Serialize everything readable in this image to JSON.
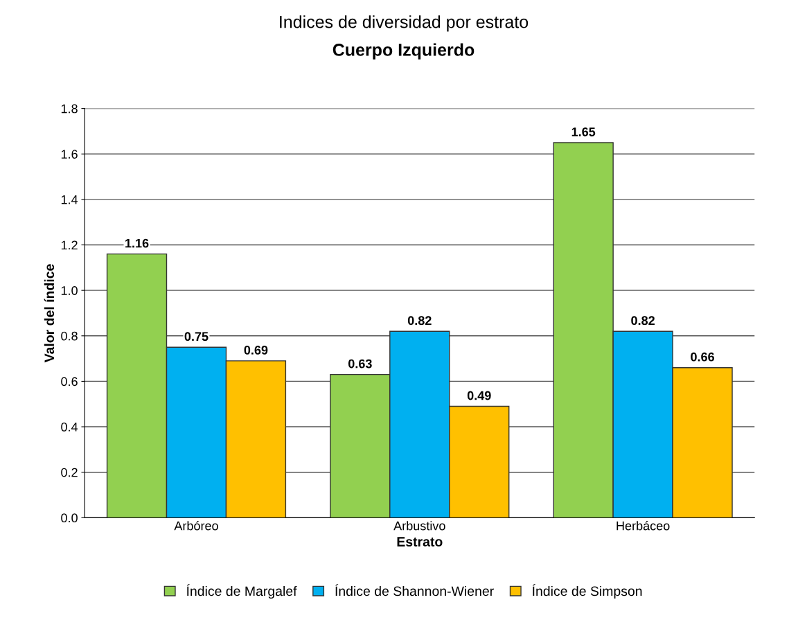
{
  "chart_data": {
    "type": "bar",
    "title": "Indices de diversidad por estrato",
    "subtitle": "Cuerpo Izquierdo",
    "xlabel": "Estrato",
    "ylabel": "Valor del índice",
    "categories": [
      "Arbóreo",
      "Arbustivo",
      "Herbáceo"
    ],
    "series": [
      {
        "name": "Índice de Margalef",
        "color": "#92d050",
        "values": [
          1.16,
          0.63,
          1.65
        ]
      },
      {
        "name": "Índice de Shannon-Wiener",
        "color": "#00b0f0",
        "values": [
          0.75,
          0.82,
          0.82
        ]
      },
      {
        "name": "Índice de Simpson",
        "color": "#ffc000",
        "values": [
          0.69,
          0.49,
          0.66
        ]
      }
    ],
    "ylim": [
      0,
      1.8
    ],
    "yticks": [
      {
        "value": 0,
        "label": "0.0"
      },
      {
        "value": 0.2,
        "label": "0.2"
      },
      {
        "value": 0.4,
        "label": "0.4"
      },
      {
        "value": 0.6,
        "label": "0.6"
      },
      {
        "value": 0.8,
        "label": "0.8"
      },
      {
        "value": 1.0,
        "label": "1.0"
      },
      {
        "value": 1.2,
        "label": "1.2"
      },
      {
        "value": 1.4,
        "label": "1.4"
      },
      {
        "value": 1.6,
        "label": "1.6"
      },
      {
        "value": 1.8,
        "label": "1.8"
      }
    ],
    "grid": "y",
    "legend": "bottom",
    "data_labels": true
  }
}
